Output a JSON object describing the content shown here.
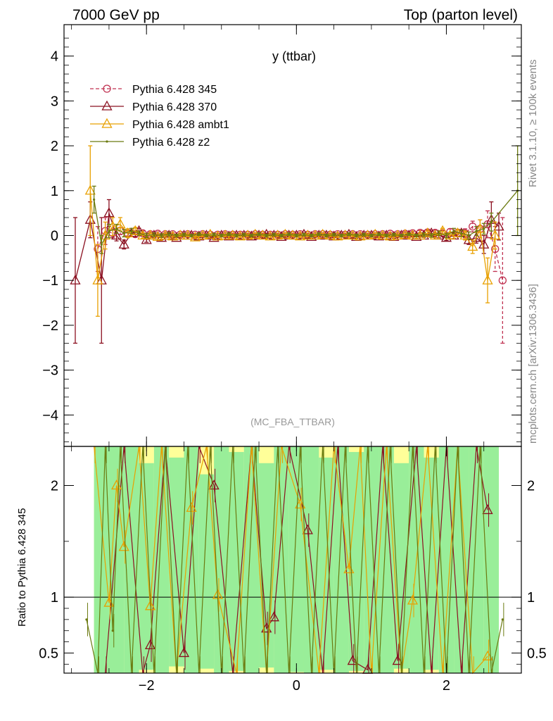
{
  "header": {
    "left": "7000 GeV pp",
    "right": "Top (parton level)"
  },
  "side_text": {
    "rivet": "Rivet 3.1.10, ≥ 100k events",
    "source": "mcplots.cern.ch [arXiv:1306.3436]"
  },
  "chart_data": {
    "type": "line",
    "title": "y (ttbar)",
    "analysis": "(MC_FBA_TTBAR)",
    "xlabel": "",
    "ylabel_main": "",
    "ylabel_ratio": "Ratio to Pythia 6.428 345",
    "xlim": [
      -3.1,
      3.0
    ],
    "ylim": [
      -4.7,
      4.7
    ],
    "ratio_ylim": [
      0.32,
      2.35
    ],
    "x_ticks": [
      "−2",
      "0",
      "2"
    ],
    "x_tick_values": [
      -2,
      0,
      2
    ],
    "y_ticks": [
      "−4",
      "−3",
      "−2",
      "−1",
      "0",
      "1",
      "2",
      "3",
      "4"
    ],
    "y_tick_values": [
      -4,
      -3,
      -2,
      -1,
      0,
      1,
      2,
      3,
      4
    ],
    "ratio_ticks": [
      "0.5",
      "1",
      "2"
    ],
    "ratio_tick_values": [
      0.5,
      1,
      2
    ],
    "legend_position": "top-left",
    "series": [
      {
        "name": "Pythia 6.428 345",
        "color": "#c03050",
        "marker": "circle",
        "dashed": true,
        "x": [
          -2.65,
          -2.55,
          -2.45,
          -2.35,
          -2.25,
          -2.15,
          -2.05,
          -1.95,
          -1.85,
          -1.75,
          -1.65,
          -1.55,
          -1.45,
          -1.35,
          -1.25,
          -1.15,
          -1.05,
          -0.95,
          -0.85,
          -0.75,
          -0.65,
          -0.55,
          -0.45,
          -0.35,
          -0.25,
          -0.15,
          -0.05,
          0.05,
          0.15,
          0.25,
          0.35,
          0.45,
          0.55,
          0.65,
          0.75,
          0.85,
          0.95,
          1.05,
          1.15,
          1.25,
          1.35,
          1.45,
          1.55,
          1.65,
          1.75,
          1.85,
          1.95,
          2.05,
          2.15,
          2.25,
          2.35,
          2.45,
          2.55,
          2.65,
          2.75
        ],
        "y": [
          -0.3,
          0.1,
          0.05,
          0.1,
          0.05,
          0.03,
          0.05,
          0.03,
          0.04,
          0.03,
          0.03,
          0.02,
          0.03,
          0.02,
          0.03,
          0.02,
          0.02,
          0.03,
          0.02,
          0.02,
          0.02,
          0.03,
          0.02,
          0.02,
          0.02,
          0.03,
          0.02,
          0.03,
          0.02,
          0.03,
          0.03,
          0.02,
          0.03,
          0.02,
          0.03,
          0.03,
          0.02,
          0.03,
          0.03,
          0.04,
          0.03,
          0.04,
          0.05,
          0.06,
          0.07,
          0.06,
          0.05,
          0.08,
          0.06,
          0.05,
          0.2,
          0.15,
          0.25,
          -0.3,
          -1.0
        ],
        "err": [
          0.5,
          0.3,
          0.1,
          0.08,
          0.06,
          0.05,
          0.05,
          0.04,
          0.04,
          0.03,
          0.03,
          0.03,
          0.03,
          0.03,
          0.03,
          0.03,
          0.03,
          0.03,
          0.03,
          0.03,
          0.03,
          0.03,
          0.03,
          0.03,
          0.03,
          0.03,
          0.03,
          0.03,
          0.03,
          0.03,
          0.03,
          0.03,
          0.03,
          0.03,
          0.03,
          0.03,
          0.03,
          0.03,
          0.03,
          0.03,
          0.03,
          0.04,
          0.04,
          0.05,
          0.05,
          0.06,
          0.06,
          0.07,
          0.08,
          0.1,
          0.12,
          0.2,
          0.3,
          0.5,
          1.4
        ]
      },
      {
        "name": "Pythia 6.428 370",
        "color": "#8b1020",
        "marker": "triangle",
        "dashed": false,
        "x": [
          -2.95,
          -2.75,
          -2.6,
          -2.5,
          -2.4,
          -2.3,
          -2.2,
          -2.1,
          -2.0,
          -1.9,
          -1.8,
          -1.7,
          -1.6,
          -1.5,
          -1.4,
          -1.3,
          -1.2,
          -1.1,
          -1.0,
          -0.9,
          -0.8,
          -0.7,
          -0.6,
          -0.5,
          -0.4,
          -0.3,
          -0.2,
          -0.1,
          0.0,
          0.1,
          0.2,
          0.3,
          0.4,
          0.5,
          0.6,
          0.7,
          0.8,
          0.9,
          1.0,
          1.1,
          1.2,
          1.3,
          1.4,
          1.5,
          1.6,
          1.7,
          1.8,
          1.9,
          2.0,
          2.1,
          2.2,
          2.3,
          2.4,
          2.5,
          2.6,
          2.7
        ],
        "y": [
          -1.0,
          0.35,
          -1.0,
          0.5,
          0.0,
          -0.2,
          0.05,
          0.1,
          -0.1,
          0.0,
          -0.05,
          0.0,
          -0.05,
          0.0,
          0.0,
          -0.02,
          0.0,
          -0.05,
          0.0,
          -0.02,
          0.0,
          0.0,
          -0.02,
          0.0,
          0.02,
          0.0,
          -0.03,
          0.0,
          0.0,
          0.02,
          -0.03,
          0.0,
          0.0,
          -0.02,
          0.0,
          0.02,
          -0.03,
          0.0,
          0.0,
          -0.02,
          0.0,
          -0.03,
          0.0,
          0.0,
          -0.03,
          0.0,
          0.05,
          0.0,
          -0.05,
          0.0,
          0.05,
          -0.1,
          -0.05,
          -0.2,
          0.35,
          0.2
        ],
        "err": [
          1.4,
          0.4,
          1.4,
          0.3,
          0.12,
          0.1,
          0.07,
          0.06,
          0.05,
          0.05,
          0.04,
          0.04,
          0.03,
          0.03,
          0.03,
          0.03,
          0.03,
          0.03,
          0.03,
          0.03,
          0.03,
          0.03,
          0.03,
          0.03,
          0.03,
          0.03,
          0.03,
          0.03,
          0.03,
          0.03,
          0.03,
          0.03,
          0.03,
          0.03,
          0.03,
          0.03,
          0.03,
          0.03,
          0.03,
          0.03,
          0.03,
          0.03,
          0.03,
          0.04,
          0.04,
          0.04,
          0.05,
          0.05,
          0.06,
          0.07,
          0.08,
          0.1,
          0.12,
          0.2,
          0.4,
          0.3
        ]
      },
      {
        "name": "Pythia 6.428 ambt1",
        "color": "#e8a000",
        "marker": "triangle",
        "dashed": false,
        "x": [
          -2.75,
          -2.65,
          -2.55,
          -2.45,
          -2.35,
          -2.25,
          -2.15,
          -2.05,
          -1.95,
          -1.85,
          -1.75,
          -1.65,
          -1.55,
          -1.45,
          -1.35,
          -1.25,
          -1.15,
          -1.05,
          -0.95,
          -0.85,
          -0.75,
          -0.65,
          -0.55,
          -0.45,
          -0.35,
          -0.25,
          -0.15,
          -0.05,
          0.05,
          0.15,
          0.25,
          0.35,
          0.45,
          0.55,
          0.65,
          0.75,
          0.85,
          0.95,
          1.05,
          1.15,
          1.25,
          1.35,
          1.45,
          1.55,
          1.65,
          1.75,
          1.85,
          1.95,
          2.05,
          2.15,
          2.25,
          2.35,
          2.45,
          2.55,
          2.65
        ],
        "y": [
          1.0,
          -1.0,
          0.0,
          0.2,
          0.25,
          0.05,
          0.1,
          0.0,
          0.0,
          -0.03,
          0.0,
          -0.02,
          0.0,
          0.0,
          -0.04,
          0.0,
          0.02,
          -0.02,
          0.0,
          0.0,
          -0.02,
          0.0,
          0.02,
          0.0,
          -0.02,
          0.0,
          0.02,
          0.0,
          -0.02,
          0.0,
          0.0,
          0.02,
          0.0,
          -0.02,
          0.0,
          0.0,
          -0.02,
          0.0,
          0.02,
          0.0,
          -0.02,
          0.0,
          0.02,
          0.0,
          0.0,
          0.05,
          0.0,
          0.1,
          0.0,
          0.05,
          0.0,
          -0.25,
          0.15,
          -1.0,
          0.0
        ],
        "err": [
          1.0,
          0.8,
          0.3,
          0.2,
          0.15,
          0.1,
          0.08,
          0.06,
          0.05,
          0.05,
          0.04,
          0.04,
          0.03,
          0.03,
          0.03,
          0.03,
          0.03,
          0.03,
          0.03,
          0.03,
          0.03,
          0.03,
          0.03,
          0.03,
          0.03,
          0.03,
          0.03,
          0.03,
          0.03,
          0.03,
          0.03,
          0.03,
          0.03,
          0.03,
          0.03,
          0.03,
          0.03,
          0.03,
          0.03,
          0.03,
          0.03,
          0.03,
          0.03,
          0.04,
          0.04,
          0.05,
          0.05,
          0.06,
          0.07,
          0.08,
          0.1,
          0.15,
          0.2,
          0.5,
          0.3
        ]
      },
      {
        "name": "Pythia 6.428 z2",
        "color": "#6b7a10",
        "marker": "dot",
        "dashed": false,
        "x": [
          -2.7,
          -2.6,
          -2.5,
          -2.4,
          -2.3,
          -2.2,
          -2.1,
          -2.0,
          -1.9,
          -1.8,
          -1.7,
          -1.6,
          -1.5,
          -1.4,
          -1.3,
          -1.2,
          -1.1,
          -1.0,
          -0.9,
          -0.8,
          -0.7,
          -0.6,
          -0.5,
          -0.4,
          -0.3,
          -0.2,
          -0.1,
          0.0,
          0.1,
          0.2,
          0.3,
          0.4,
          0.5,
          0.6,
          0.7,
          0.8,
          0.9,
          1.0,
          1.1,
          1.2,
          1.3,
          1.4,
          1.5,
          1.6,
          1.7,
          1.8,
          1.9,
          2.0,
          2.1,
          2.2,
          2.3,
          2.4,
          2.5,
          2.6,
          2.95
        ],
        "y": [
          0.8,
          -0.2,
          0.1,
          0.15,
          0.05,
          0.1,
          0.05,
          0.0,
          0.02,
          0.0,
          0.03,
          0.0,
          0.02,
          0.0,
          0.03,
          0.0,
          0.02,
          0.0,
          0.03,
          0.0,
          0.02,
          0.0,
          0.03,
          0.0,
          0.02,
          0.0,
          0.03,
          0.0,
          0.02,
          0.0,
          0.03,
          0.0,
          0.02,
          0.0,
          0.03,
          0.0,
          0.02,
          0.0,
          0.03,
          0.0,
          0.02,
          0.0,
          0.03,
          0.0,
          0.02,
          0.0,
          0.05,
          0.0,
          0.1,
          0.05,
          0.0,
          0.1,
          0.15,
          0.3,
          1.0
        ],
        "err": [
          0.3,
          0.2,
          0.15,
          0.1,
          0.08,
          0.06,
          0.05,
          0.05,
          0.04,
          0.04,
          0.04,
          0.03,
          0.03,
          0.03,
          0.03,
          0.03,
          0.03,
          0.03,
          0.03,
          0.03,
          0.03,
          0.03,
          0.03,
          0.03,
          0.03,
          0.03,
          0.03,
          0.03,
          0.03,
          0.03,
          0.03,
          0.03,
          0.03,
          0.03,
          0.03,
          0.03,
          0.03,
          0.03,
          0.03,
          0.03,
          0.03,
          0.03,
          0.03,
          0.03,
          0.04,
          0.04,
          0.05,
          0.05,
          0.06,
          0.07,
          0.08,
          0.1,
          0.12,
          0.2,
          1.0
        ]
      }
    ],
    "ratio_band_inner": {
      "color": "#99ee99",
      "x0": [
        -2.7,
        -2.5,
        -2.3,
        -2.1,
        -1.9,
        -1.7,
        -1.5,
        -1.3,
        -1.1,
        -0.9,
        -0.7,
        -0.5,
        -0.3,
        -0.1,
        0.1,
        0.3,
        0.5,
        0.7,
        0.9,
        1.1,
        1.3,
        1.5,
        1.7,
        1.9,
        2.1,
        2.3,
        2.5
      ],
      "lo": [
        0.32,
        0.32,
        0.32,
        0.35,
        0.32,
        0.38,
        0.32,
        0.36,
        0.32,
        0.34,
        0.32,
        0.37,
        0.32,
        0.33,
        0.32,
        0.35,
        0.32,
        0.34,
        0.32,
        0.32,
        0.36,
        0.32,
        0.35,
        0.32,
        0.32,
        0.32,
        0.32
      ],
      "hi": [
        2.35,
        2.35,
        2.35,
        2.2,
        2.35,
        2.25,
        2.35,
        2.1,
        2.35,
        2.3,
        2.35,
        2.2,
        2.35,
        2.35,
        2.35,
        2.25,
        2.35,
        2.3,
        2.35,
        2.35,
        2.2,
        2.35,
        2.25,
        2.35,
        2.35,
        2.35,
        2.35
      ]
    },
    "ratio_band_outer": {
      "color": "#ffff99",
      "x0": [
        -2.7,
        -2.5,
        -2.3,
        -2.1,
        -1.9,
        -1.7,
        -1.5,
        -1.3,
        -1.1,
        -0.9,
        -0.7,
        -0.5,
        -0.3,
        -0.1,
        0.1,
        0.3,
        0.5,
        0.7,
        0.9,
        1.1,
        1.3,
        1.5,
        1.7,
        1.9,
        2.1,
        2.3,
        2.5
      ],
      "lo": [
        0.32,
        0.32,
        0.32,
        0.32,
        0.32,
        0.32,
        0.32,
        0.32,
        0.32,
        0.32,
        0.32,
        0.32,
        0.32,
        0.32,
        0.32,
        0.32,
        0.32,
        0.32,
        0.32,
        0.32,
        0.32,
        0.32,
        0.32,
        0.32,
        0.32,
        0.32,
        0.32
      ],
      "hi": [
        2.35,
        2.35,
        2.35,
        2.35,
        2.35,
        2.35,
        2.35,
        2.35,
        2.35,
        2.35,
        2.35,
        2.35,
        2.35,
        2.35,
        2.35,
        2.35,
        2.35,
        2.35,
        2.35,
        2.35,
        2.35,
        2.35,
        2.35,
        2.35,
        2.35,
        2.35,
        2.35
      ]
    },
    "ratio_series": [
      {
        "name": "Pythia 6.428 370",
        "color": "#8b1020",
        "x": [
          -2.55,
          -2.3,
          -2.05,
          -1.95,
          -1.75,
          -1.5,
          -1.3,
          -1.1,
          -0.85,
          -0.6,
          -0.4,
          -0.3,
          -0.1,
          0.15,
          0.35,
          0.55,
          0.75,
          0.95,
          1.15,
          1.35,
          1.6,
          1.8,
          2.0,
          2.2,
          2.4,
          2.55
        ],
        "y": [
          0.32,
          2.35,
          0.32,
          0.57,
          2.35,
          0.5,
          2.35,
          2.0,
          0.32,
          2.35,
          0.72,
          0.82,
          2.35,
          1.6,
          0.32,
          2.35,
          0.43,
          0.35,
          2.35,
          0.43,
          2.35,
          0.32,
          2.35,
          0.32,
          2.35,
          1.78
        ]
      },
      {
        "name": "Pythia 6.428 ambt1",
        "color": "#e8a000",
        "x": [
          -2.7,
          -2.5,
          -2.4,
          -2.3,
          -2.1,
          -1.95,
          -1.8,
          -1.6,
          -1.4,
          -1.2,
          -1.05,
          -0.8,
          -0.6,
          -0.4,
          -0.2,
          0.05,
          0.3,
          0.5,
          0.7,
          0.85,
          1.0,
          1.2,
          1.4,
          1.55,
          1.75,
          1.95,
          2.15,
          2.35,
          2.55
        ],
        "y": [
          2.35,
          0.95,
          2.0,
          1.45,
          2.35,
          0.92,
          2.35,
          0.32,
          1.8,
          2.35,
          1.02,
          0.32,
          2.35,
          0.32,
          2.35,
          1.83,
          0.32,
          2.35,
          1.25,
          2.35,
          0.32,
          2.35,
          0.32,
          0.97,
          2.35,
          0.32,
          2.35,
          0.32,
          0.47
        ]
      },
      {
        "name": "Pythia 6.428 z2",
        "color": "#6b7a10",
        "x": [
          -2.8,
          -2.65,
          -2.55,
          -2.45,
          -2.35,
          -2.2,
          -2.05,
          -1.9,
          -1.75,
          -1.6,
          -1.45,
          -1.3,
          -1.15,
          -1.0,
          -0.85,
          -0.7,
          -0.55,
          -0.4,
          -0.25,
          -0.1,
          0.05,
          0.2,
          0.35,
          0.5,
          0.65,
          0.8,
          0.95,
          1.1,
          1.25,
          1.4,
          1.55,
          1.7,
          1.85,
          2.0,
          2.15,
          2.3,
          2.45,
          2.6,
          2.75
        ],
        "y": [
          0.8,
          0.32,
          2.35,
          0.7,
          2.35,
          0.32,
          2.35,
          0.32,
          2.35,
          0.32,
          2.35,
          0.32,
          2.35,
          0.32,
          2.35,
          0.32,
          2.35,
          0.32,
          2.35,
          0.32,
          2.35,
          0.32,
          2.35,
          0.32,
          2.35,
          0.32,
          2.35,
          0.32,
          2.35,
          0.32,
          2.35,
          0.32,
          2.35,
          0.32,
          2.35,
          0.32,
          2.35,
          0.32,
          0.8
        ]
      }
    ]
  }
}
